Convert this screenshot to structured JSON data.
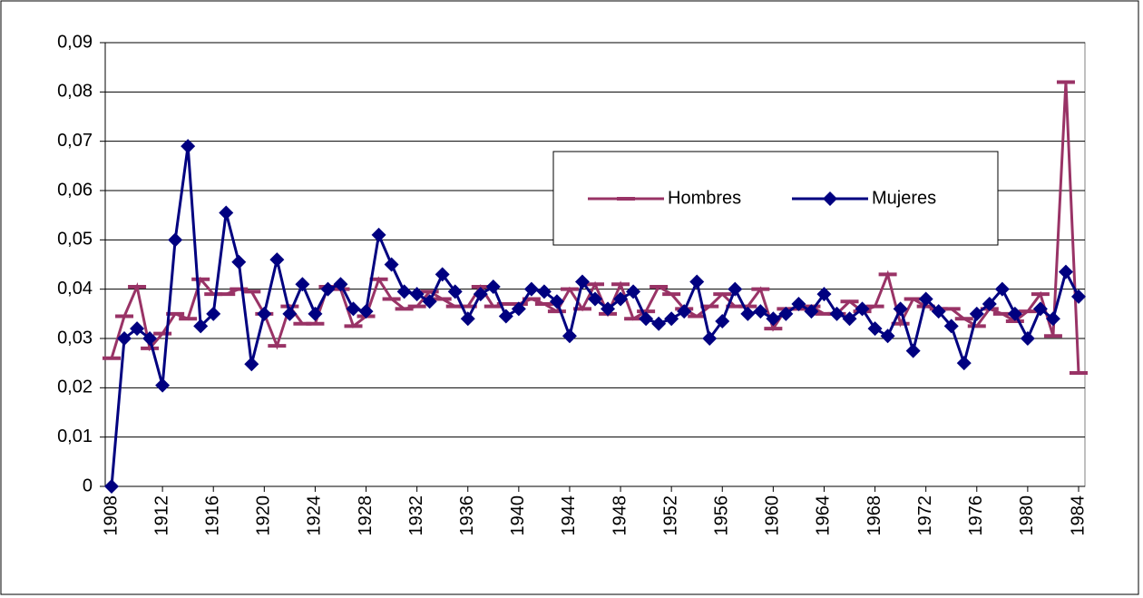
{
  "chart_data": {
    "type": "line",
    "x": [
      1908,
      1909,
      1910,
      1911,
      1912,
      1913,
      1914,
      1915,
      1916,
      1917,
      1918,
      1919,
      1920,
      1921,
      1922,
      1923,
      1924,
      1925,
      1926,
      1927,
      1928,
      1929,
      1930,
      1931,
      1932,
      1933,
      1934,
      1935,
      1936,
      1937,
      1938,
      1939,
      1940,
      1941,
      1942,
      1943,
      1944,
      1945,
      1946,
      1947,
      1948,
      1949,
      1950,
      1951,
      1952,
      1953,
      1954,
      1955,
      1956,
      1957,
      1958,
      1959,
      1960,
      1961,
      1962,
      1963,
      1964,
      1965,
      1966,
      1967,
      1968,
      1969,
      1970,
      1971,
      1972,
      1973,
      1974,
      1975,
      1976,
      1977,
      1978,
      1979,
      1980,
      1981,
      1982,
      1983,
      1984
    ],
    "series": [
      {
        "name": "Hombres",
        "color": "#993366",
        "marker": "dash",
        "values": [
          0.026,
          0.0345,
          0.0405,
          0.028,
          0.031,
          0.035,
          0.034,
          0.042,
          0.039,
          0.039,
          0.04,
          0.0395,
          0.035,
          0.0285,
          0.0365,
          0.033,
          0.033,
          0.0405,
          0.04,
          0.0325,
          0.0345,
          0.042,
          0.038,
          0.036,
          0.0365,
          0.0395,
          0.038,
          0.0365,
          0.0365,
          0.0405,
          0.0365,
          0.037,
          0.037,
          0.038,
          0.037,
          0.0355,
          0.04,
          0.036,
          0.041,
          0.035,
          0.041,
          0.034,
          0.0355,
          0.0405,
          0.039,
          0.036,
          0.0345,
          0.0365,
          0.039,
          0.0365,
          0.0365,
          0.04,
          0.032,
          0.036,
          0.036,
          0.0365,
          0.035,
          0.035,
          0.0375,
          0.0355,
          0.0365,
          0.043,
          0.033,
          0.038,
          0.0365,
          0.036,
          0.036,
          0.034,
          0.0325,
          0.036,
          0.035,
          0.0335,
          0.0355,
          0.039,
          0.0305,
          0.082,
          0.023
        ]
      },
      {
        "name": "Mujeres",
        "color": "#000080",
        "marker": "diamond",
        "values": [
          0,
          0.03,
          0.032,
          0.03,
          0.0205,
          0.05,
          0.069,
          0.0325,
          0.035,
          0.0555,
          0.0455,
          0.0248,
          0.035,
          0.046,
          0.035,
          0.041,
          0.035,
          0.04,
          0.041,
          0.036,
          0.0355,
          0.051,
          0.045,
          0.0395,
          0.039,
          0.0375,
          0.043,
          0.0395,
          0.034,
          0.039,
          0.0405,
          0.0345,
          0.036,
          0.04,
          0.0395,
          0.0375,
          0.0305,
          0.0415,
          0.038,
          0.036,
          0.038,
          0.0395,
          0.034,
          0.033,
          0.034,
          0.0355,
          0.0415,
          0.03,
          0.0335,
          0.04,
          0.035,
          0.0355,
          0.034,
          0.035,
          0.037,
          0.0355,
          0.039,
          0.035,
          0.034,
          0.036,
          0.032,
          0.0305,
          0.036,
          0.0275,
          0.038,
          0.0355,
          0.0325,
          0.025,
          0.035,
          0.037,
          0.04,
          0.035,
          0.03,
          0.036,
          0.034,
          0.0435,
          0.0385
        ]
      }
    ],
    "xlim": [
      1907.5,
      1984.5
    ],
    "xticks": [
      1908,
      1912,
      1916,
      1920,
      1924,
      1928,
      1932,
      1936,
      1940,
      1944,
      1948,
      1952,
      1956,
      1960,
      1964,
      1968,
      1972,
      1976,
      1980,
      1984
    ],
    "ylim": [
      0,
      0.09
    ],
    "yticks": [
      0,
      {
        "value": 0.01,
        "label": "0,01"
      },
      {
        "value": 0.02,
        "label": "0,02"
      },
      {
        "value": 0.03,
        "label": "0,03"
      },
      {
        "value": 0.04,
        "label": "0,04"
      },
      {
        "value": 0.05,
        "label": "0,05"
      },
      {
        "value": 0.06,
        "label": "0,06"
      },
      {
        "value": 0.07,
        "label": "0,07"
      },
      {
        "value": 0.08,
        "label": "0,08"
      },
      {
        "value": 0.09,
        "label": "0,09"
      }
    ],
    "grid": true
  }
}
